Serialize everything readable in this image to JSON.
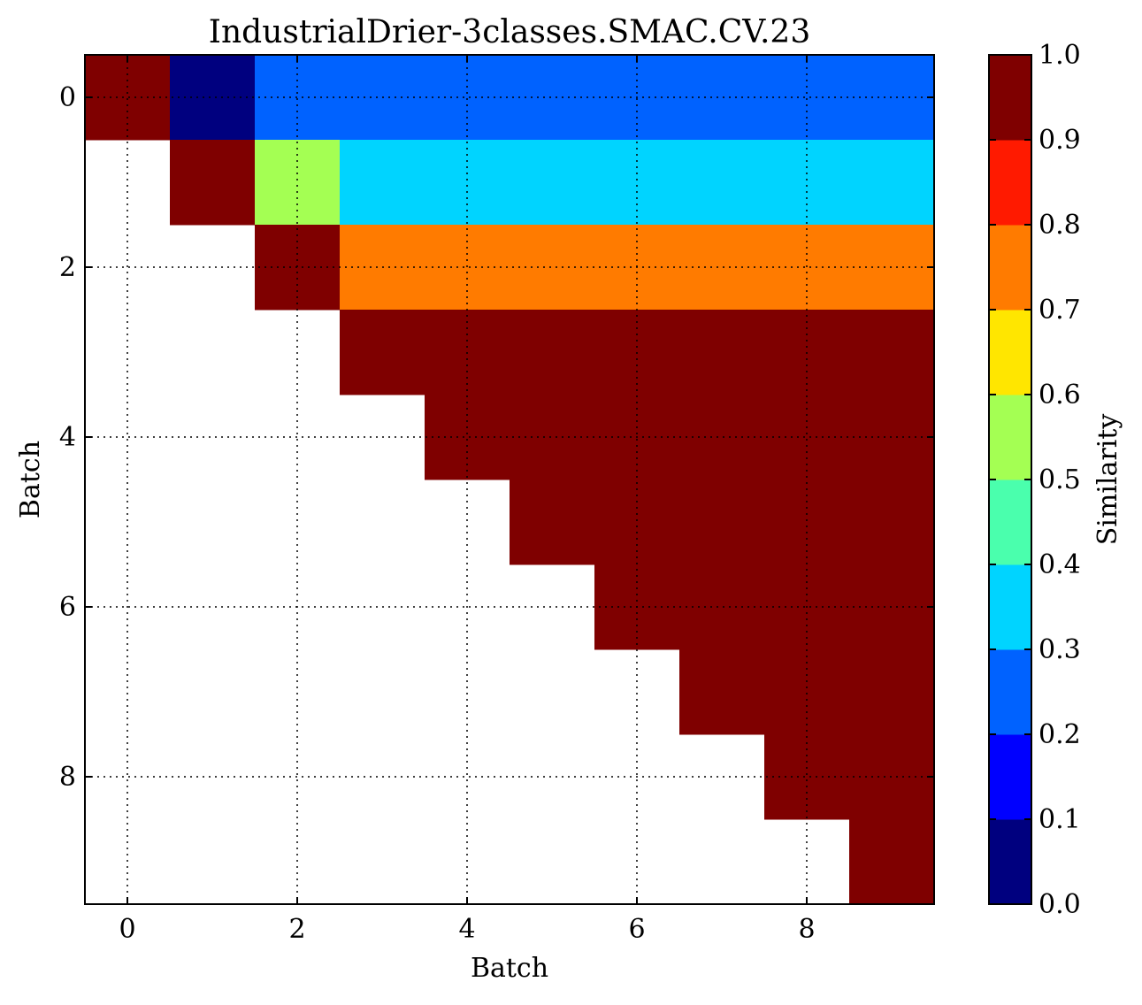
{
  "chart_data": {
    "type": "heatmap",
    "title": "IndustrialDrier-3classes.SMAC.CV.23",
    "xlabel": "Batch",
    "ylabel": "Batch",
    "x_ticks": [
      0,
      2,
      4,
      6,
      8
    ],
    "y_ticks": [
      0,
      2,
      4,
      6,
      8
    ],
    "grid": true,
    "colorbar": {
      "label": "Similarity",
      "range": [
        0.0,
        1.0
      ],
      "ticks": [
        "0.0",
        "0.1",
        "0.2",
        "0.3",
        "0.4",
        "0.5",
        "0.6",
        "0.7",
        "0.8",
        "0.9",
        "1.0"
      ],
      "colors": [
        "#00007f",
        "#0000ff",
        "#0062ff",
        "#00d4ff",
        "#4affad",
        "#a4ff53",
        "#ffe600",
        "#ff7b00",
        "#ff1a00",
        "#7f0000"
      ]
    },
    "matrix": [
      [
        1.0,
        0.05,
        0.25,
        0.25,
        0.25,
        0.25,
        0.25,
        0.25,
        0.25,
        0.25
      ],
      [
        null,
        1.0,
        0.55,
        0.35,
        0.35,
        0.35,
        0.35,
        0.35,
        0.35,
        0.35
      ],
      [
        null,
        null,
        1.0,
        0.75,
        0.75,
        0.75,
        0.75,
        0.75,
        0.75,
        0.75
      ],
      [
        null,
        null,
        null,
        1.0,
        1.0,
        1.0,
        1.0,
        1.0,
        1.0,
        1.0
      ],
      [
        null,
        null,
        null,
        null,
        1.0,
        1.0,
        1.0,
        1.0,
        1.0,
        1.0
      ],
      [
        null,
        null,
        null,
        null,
        null,
        1.0,
        1.0,
        1.0,
        1.0,
        1.0
      ],
      [
        null,
        null,
        null,
        null,
        null,
        null,
        1.0,
        1.0,
        1.0,
        1.0
      ],
      [
        null,
        null,
        null,
        null,
        null,
        null,
        null,
        1.0,
        1.0,
        1.0
      ],
      [
        null,
        null,
        null,
        null,
        null,
        null,
        null,
        null,
        1.0,
        1.0
      ],
      [
        null,
        null,
        null,
        null,
        null,
        null,
        null,
        null,
        null,
        1.0
      ]
    ]
  }
}
